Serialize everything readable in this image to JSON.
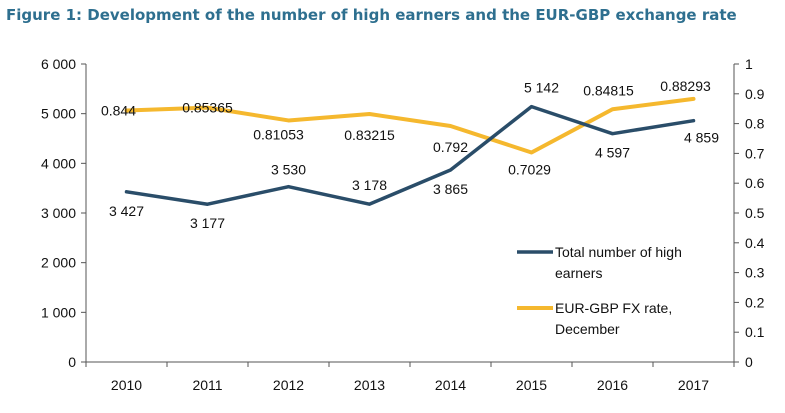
{
  "figure": {
    "title": "Figure 1: Development of the number of high earners and the EUR-GBP exchange rate"
  },
  "colors": {
    "high_earners": "#2A4D69",
    "fx_rate": "#F5B82E",
    "axis": "#555555"
  },
  "chart_data": {
    "type": "line",
    "title": "Figure 1: Development of the number of high earners and the EUR-GBP exchange rate",
    "x": [
      "2010",
      "2011",
      "2012",
      "2013",
      "2014",
      "2015",
      "2016",
      "2017"
    ],
    "series": [
      {
        "name": "Total number of high earners",
        "axis": "left",
        "values": [
          3427,
          3177,
          3530,
          3178,
          3865,
          5142,
          4597,
          4859
        ],
        "labels": [
          "3 427",
          "3 177",
          "3 530",
          "3 178",
          "3 865",
          "5 142",
          "4 597",
          "4 859"
        ]
      },
      {
        "name": "EUR-GBP FX rate, December",
        "axis": "right",
        "values": [
          0.844,
          0.85365,
          0.81053,
          0.83215,
          0.792,
          0.7029,
          0.84815,
          0.88293
        ],
        "labels": [
          "0.844",
          "0.85365",
          "0.81053",
          "0.83215",
          "0.792",
          "0.7029",
          "0.84815",
          "0.88293"
        ]
      }
    ],
    "y_left": {
      "min": 0,
      "max": 6000,
      "ticks": [
        0,
        1000,
        2000,
        3000,
        4000,
        5000,
        6000
      ],
      "tick_labels": [
        "0",
        "1 000",
        "2 000",
        "3 000",
        "4 000",
        "5 000",
        "6 000"
      ]
    },
    "y_right": {
      "min": 0,
      "max": 1,
      "ticks": [
        0,
        0.1,
        0.2,
        0.3,
        0.4,
        0.5,
        0.6,
        0.7,
        0.8,
        0.9,
        1
      ],
      "tick_labels": [
        "0",
        "0.1",
        "0.2",
        "0.3",
        "0.4",
        "0.5",
        "0.6",
        "0.7",
        "0.8",
        "0.9",
        "1"
      ]
    },
    "legend": {
      "placement": "right",
      "entries": [
        {
          "lines": [
            "Total number of high",
            "earners"
          ]
        },
        {
          "lines": [
            "EUR-GBP FX rate,",
            "December"
          ]
        }
      ]
    },
    "grid": false
  }
}
